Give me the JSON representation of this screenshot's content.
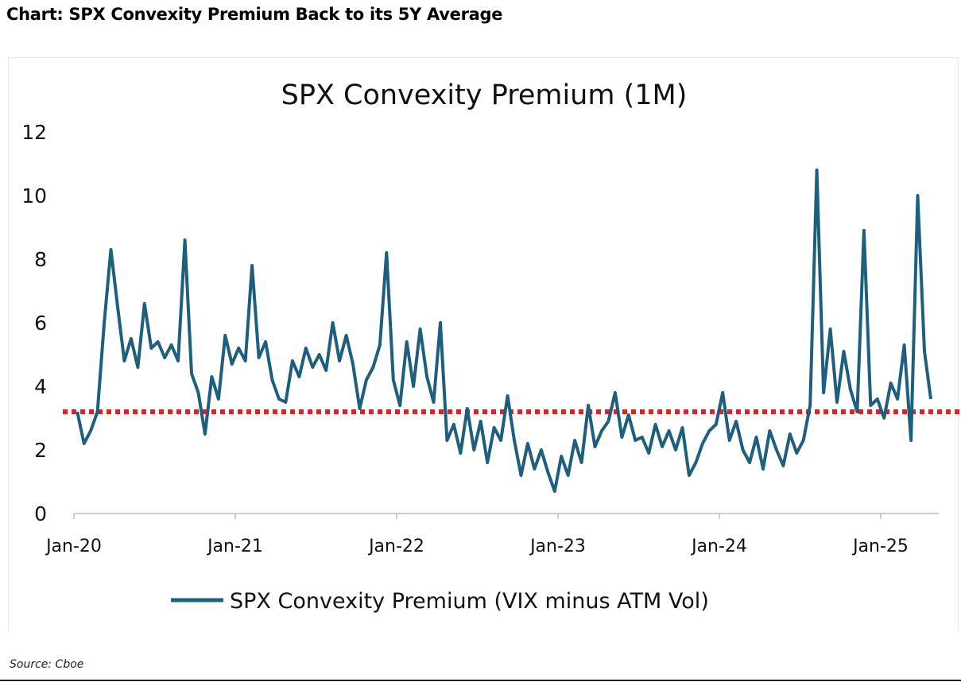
{
  "page": {
    "heading": "Chart: SPX Convexity Premium Back to its 5Y Average",
    "source": "Source: Cboe"
  },
  "colors": {
    "series": "#1f5f7e",
    "average": "#e41f1f",
    "axis": "#bfbfbf"
  },
  "chart_data": {
    "type": "line",
    "title": "SPX Convexity Premium (1M)",
    "xlabel": "",
    "ylabel": "",
    "ylim": [
      0,
      12
    ],
    "yticks": [
      "0",
      "2",
      "4",
      "6",
      "8",
      "10",
      "12"
    ],
    "xticks": [
      "Jan-20",
      "Jan-21",
      "Jan-22",
      "Jan-23",
      "Jan-24",
      "Jan-25"
    ],
    "xlim": [
      "2020-01",
      "2025-04"
    ],
    "grid": false,
    "legend_position": "bottom",
    "series": [
      {
        "name": "SPX Convexity Premium (VIX minus ATM Vol)",
        "x": [
          "2020-01",
          "2020-01",
          "2020-02",
          "2020-02",
          "2020-03",
          "2020-03",
          "2020-04",
          "2020-04",
          "2020-05",
          "2020-05",
          "2020-06",
          "2020-06",
          "2020-07",
          "2020-07",
          "2020-08",
          "2020-08",
          "2020-09",
          "2020-09",
          "2020-10",
          "2020-10",
          "2020-11",
          "2020-11",
          "2020-12",
          "2020-12",
          "2021-01",
          "2021-01",
          "2021-02",
          "2021-02",
          "2021-03",
          "2021-03",
          "2021-04",
          "2021-04",
          "2021-05",
          "2021-05",
          "2021-06",
          "2021-06",
          "2021-07",
          "2021-07",
          "2021-08",
          "2021-08",
          "2021-09",
          "2021-09",
          "2021-10",
          "2021-10",
          "2021-11",
          "2021-11",
          "2021-12",
          "2021-12",
          "2022-01",
          "2022-01",
          "2022-02",
          "2022-02",
          "2022-03",
          "2022-03",
          "2022-04",
          "2022-04",
          "2022-05",
          "2022-05",
          "2022-06",
          "2022-06",
          "2022-07",
          "2022-07",
          "2022-08",
          "2022-08",
          "2022-09",
          "2022-09",
          "2022-10",
          "2022-10",
          "2022-11",
          "2022-11",
          "2022-12",
          "2022-12",
          "2023-01",
          "2023-01",
          "2023-02",
          "2023-02",
          "2023-03",
          "2023-03",
          "2023-04",
          "2023-04",
          "2023-05",
          "2023-05",
          "2023-06",
          "2023-06",
          "2023-07",
          "2023-07",
          "2023-08",
          "2023-08",
          "2023-09",
          "2023-09",
          "2023-10",
          "2023-10",
          "2023-11",
          "2023-11",
          "2023-12",
          "2023-12",
          "2024-01",
          "2024-01",
          "2024-02",
          "2024-02",
          "2024-03",
          "2024-03",
          "2024-04",
          "2024-04",
          "2024-05",
          "2024-05",
          "2024-06",
          "2024-06",
          "2024-07",
          "2024-07",
          "2024-08",
          "2024-08",
          "2024-09",
          "2024-09",
          "2024-10",
          "2024-10",
          "2024-11",
          "2024-11",
          "2024-12",
          "2024-12",
          "2025-01",
          "2025-01",
          "2025-02",
          "2025-02",
          "2025-03",
          "2025-03",
          "2025-04",
          "2025-04"
        ],
        "values": [
          3.2,
          2.2,
          2.6,
          3.2,
          6.0,
          8.3,
          6.5,
          4.8,
          5.5,
          4.6,
          6.6,
          5.2,
          5.4,
          4.9,
          5.3,
          4.8,
          8.6,
          4.4,
          3.8,
          2.5,
          4.3,
          3.6,
          5.6,
          4.7,
          5.2,
          4.8,
          7.8,
          4.9,
          5.4,
          4.2,
          3.6,
          3.5,
          4.8,
          4.3,
          5.2,
          4.6,
          5.0,
          4.5,
          6.0,
          4.8,
          5.6,
          4.7,
          3.3,
          4.2,
          4.6,
          5.3,
          8.2,
          4.2,
          3.4,
          5.4,
          4.0,
          5.8,
          4.3,
          3.5,
          6.0,
          2.3,
          2.8,
          1.9,
          3.3,
          2.0,
          2.9,
          1.6,
          2.7,
          2.3,
          3.7,
          2.3,
          1.2,
          2.2,
          1.4,
          2.0,
          1.3,
          0.7,
          1.8,
          1.2,
          2.3,
          1.6,
          3.4,
          2.1,
          2.6,
          2.9,
          3.8,
          2.4,
          3.1,
          2.3,
          2.4,
          1.9,
          2.8,
          2.1,
          2.6,
          2.0,
          2.7,
          1.2,
          1.6,
          2.2,
          2.6,
          2.8,
          3.8,
          2.3,
          2.9,
          2.0,
          1.6,
          2.4,
          1.4,
          2.6,
          2.0,
          1.5,
          2.5,
          1.9,
          2.3,
          3.4,
          10.8,
          3.8,
          5.8,
          3.5,
          5.1,
          3.9,
          3.2,
          8.9,
          3.4,
          3.6,
          3.0,
          4.1,
          3.6,
          5.3,
          2.3,
          10.0,
          5.1,
          3.6
        ]
      }
    ],
    "reference_lines": [
      {
        "name": "5Y Average",
        "y": 3.2,
        "style": "dotted"
      }
    ]
  }
}
